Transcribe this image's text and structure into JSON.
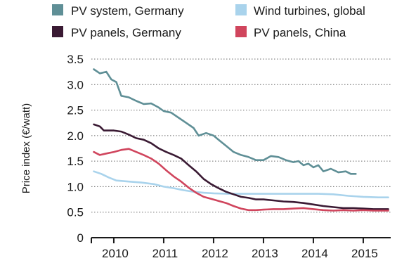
{
  "chart_data": {
    "type": "line",
    "title": "",
    "xlabel": "",
    "ylabel": "Price index (€/watt)",
    "xlim": [
      2009.55,
      2015.55
    ],
    "ylim": [
      0,
      3.5
    ],
    "x_ticks": [
      "2010",
      "2011",
      "2012",
      "2013",
      "2014",
      "2015"
    ],
    "y_ticks": [
      "0",
      "0.5",
      "1.0",
      "1.5",
      "2.0",
      "2.5",
      "3.0",
      "3.5"
    ],
    "grid": "horizontal dotted",
    "legend_position": "top",
    "series": [
      {
        "name": "PV system, Germany",
        "color": "#5f8f96",
        "points": [
          [
            2009.6,
            3.3
          ],
          [
            2009.72,
            3.22
          ],
          [
            2009.85,
            3.25
          ],
          [
            2009.95,
            3.1
          ],
          [
            2010.05,
            3.05
          ],
          [
            2010.15,
            2.78
          ],
          [
            2010.3,
            2.75
          ],
          [
            2010.45,
            2.68
          ],
          [
            2010.6,
            2.62
          ],
          [
            2010.75,
            2.63
          ],
          [
            2010.9,
            2.55
          ],
          [
            2011.0,
            2.48
          ],
          [
            2011.15,
            2.45
          ],
          [
            2011.3,
            2.35
          ],
          [
            2011.45,
            2.25
          ],
          [
            2011.6,
            2.15
          ],
          [
            2011.7,
            2.0
          ],
          [
            2011.85,
            2.05
          ],
          [
            2012.0,
            2.0
          ],
          [
            2012.1,
            1.92
          ],
          [
            2012.25,
            1.8
          ],
          [
            2012.4,
            1.68
          ],
          [
            2012.55,
            1.62
          ],
          [
            2012.7,
            1.58
          ],
          [
            2012.85,
            1.52
          ],
          [
            2013.0,
            1.52
          ],
          [
            2013.15,
            1.6
          ],
          [
            2013.3,
            1.58
          ],
          [
            2013.45,
            1.52
          ],
          [
            2013.6,
            1.48
          ],
          [
            2013.7,
            1.5
          ],
          [
            2013.8,
            1.42
          ],
          [
            2013.9,
            1.45
          ],
          [
            2014.0,
            1.38
          ],
          [
            2014.1,
            1.42
          ],
          [
            2014.2,
            1.3
          ],
          [
            2014.35,
            1.35
          ],
          [
            2014.5,
            1.28
          ],
          [
            2014.65,
            1.3
          ],
          [
            2014.75,
            1.25
          ],
          [
            2014.85,
            1.25
          ]
        ]
      },
      {
        "name": "Wind turbines, global",
        "color": "#a9d3ec",
        "points": [
          [
            2009.6,
            1.3
          ],
          [
            2009.75,
            1.25
          ],
          [
            2009.9,
            1.18
          ],
          [
            2010.05,
            1.12
          ],
          [
            2010.3,
            1.1
          ],
          [
            2010.55,
            1.08
          ],
          [
            2010.8,
            1.05
          ],
          [
            2011.0,
            1.0
          ],
          [
            2011.2,
            0.97
          ],
          [
            2011.4,
            0.93
          ],
          [
            2011.6,
            0.9
          ],
          [
            2011.8,
            0.88
          ],
          [
            2012.0,
            0.87
          ],
          [
            2012.3,
            0.86
          ],
          [
            2012.6,
            0.86
          ],
          [
            2012.9,
            0.86
          ],
          [
            2013.2,
            0.86
          ],
          [
            2013.5,
            0.86
          ],
          [
            2013.8,
            0.86
          ],
          [
            2014.1,
            0.86
          ],
          [
            2014.4,
            0.85
          ],
          [
            2014.7,
            0.82
          ],
          [
            2015.0,
            0.8
          ],
          [
            2015.3,
            0.79
          ],
          [
            2015.5,
            0.79
          ]
        ]
      },
      {
        "name": "PV panels, Germany",
        "color": "#3a1a33",
        "points": [
          [
            2009.6,
            2.22
          ],
          [
            2009.72,
            2.18
          ],
          [
            2009.8,
            2.1
          ],
          [
            2010.0,
            2.1
          ],
          [
            2010.15,
            2.08
          ],
          [
            2010.3,
            2.02
          ],
          [
            2010.45,
            1.95
          ],
          [
            2010.6,
            1.92
          ],
          [
            2010.75,
            1.85
          ],
          [
            2010.9,
            1.75
          ],
          [
            2011.05,
            1.68
          ],
          [
            2011.2,
            1.62
          ],
          [
            2011.35,
            1.55
          ],
          [
            2011.5,
            1.42
          ],
          [
            2011.65,
            1.3
          ],
          [
            2011.8,
            1.15
          ],
          [
            2011.95,
            1.05
          ],
          [
            2012.1,
            0.97
          ],
          [
            2012.25,
            0.9
          ],
          [
            2012.4,
            0.85
          ],
          [
            2012.55,
            0.8
          ],
          [
            2012.7,
            0.78
          ],
          [
            2012.85,
            0.75
          ],
          [
            2013.0,
            0.75
          ],
          [
            2013.2,
            0.73
          ],
          [
            2013.4,
            0.71
          ],
          [
            2013.6,
            0.7
          ],
          [
            2013.8,
            0.68
          ],
          [
            2014.0,
            0.65
          ],
          [
            2014.2,
            0.62
          ],
          [
            2014.4,
            0.6
          ],
          [
            2014.6,
            0.58
          ],
          [
            2014.8,
            0.58
          ],
          [
            2015.0,
            0.57
          ],
          [
            2015.2,
            0.56
          ],
          [
            2015.5,
            0.56
          ]
        ]
      },
      {
        "name": "PV panels, China",
        "color": "#d0455d",
        "points": [
          [
            2009.6,
            1.68
          ],
          [
            2009.72,
            1.62
          ],
          [
            2009.85,
            1.65
          ],
          [
            2010.0,
            1.68
          ],
          [
            2010.15,
            1.72
          ],
          [
            2010.3,
            1.74
          ],
          [
            2010.45,
            1.68
          ],
          [
            2010.6,
            1.62
          ],
          [
            2010.75,
            1.55
          ],
          [
            2010.9,
            1.45
          ],
          [
            2011.05,
            1.32
          ],
          [
            2011.2,
            1.2
          ],
          [
            2011.35,
            1.1
          ],
          [
            2011.5,
            0.98
          ],
          [
            2011.65,
            0.88
          ],
          [
            2011.8,
            0.8
          ],
          [
            2011.95,
            0.76
          ],
          [
            2012.1,
            0.72
          ],
          [
            2012.25,
            0.68
          ],
          [
            2012.4,
            0.62
          ],
          [
            2012.55,
            0.57
          ],
          [
            2012.7,
            0.54
          ],
          [
            2012.85,
            0.54
          ],
          [
            2013.0,
            0.55
          ],
          [
            2013.2,
            0.56
          ],
          [
            2013.4,
            0.56
          ],
          [
            2013.6,
            0.57
          ],
          [
            2013.8,
            0.58
          ],
          [
            2014.0,
            0.56
          ],
          [
            2014.2,
            0.54
          ],
          [
            2014.4,
            0.53
          ],
          [
            2014.6,
            0.54
          ],
          [
            2014.8,
            0.53
          ],
          [
            2015.0,
            0.54
          ],
          [
            2015.2,
            0.53
          ],
          [
            2015.5,
            0.53
          ]
        ]
      }
    ]
  },
  "legend": {
    "items": [
      {
        "label": "PV system, Germany",
        "color": "#5f8f96"
      },
      {
        "label": "Wind turbines, global",
        "color": "#a9d3ec"
      },
      {
        "label": "PV panels, Germany",
        "color": "#3a1a33"
      },
      {
        "label": "PV panels, China",
        "color": "#d0455d"
      }
    ]
  }
}
